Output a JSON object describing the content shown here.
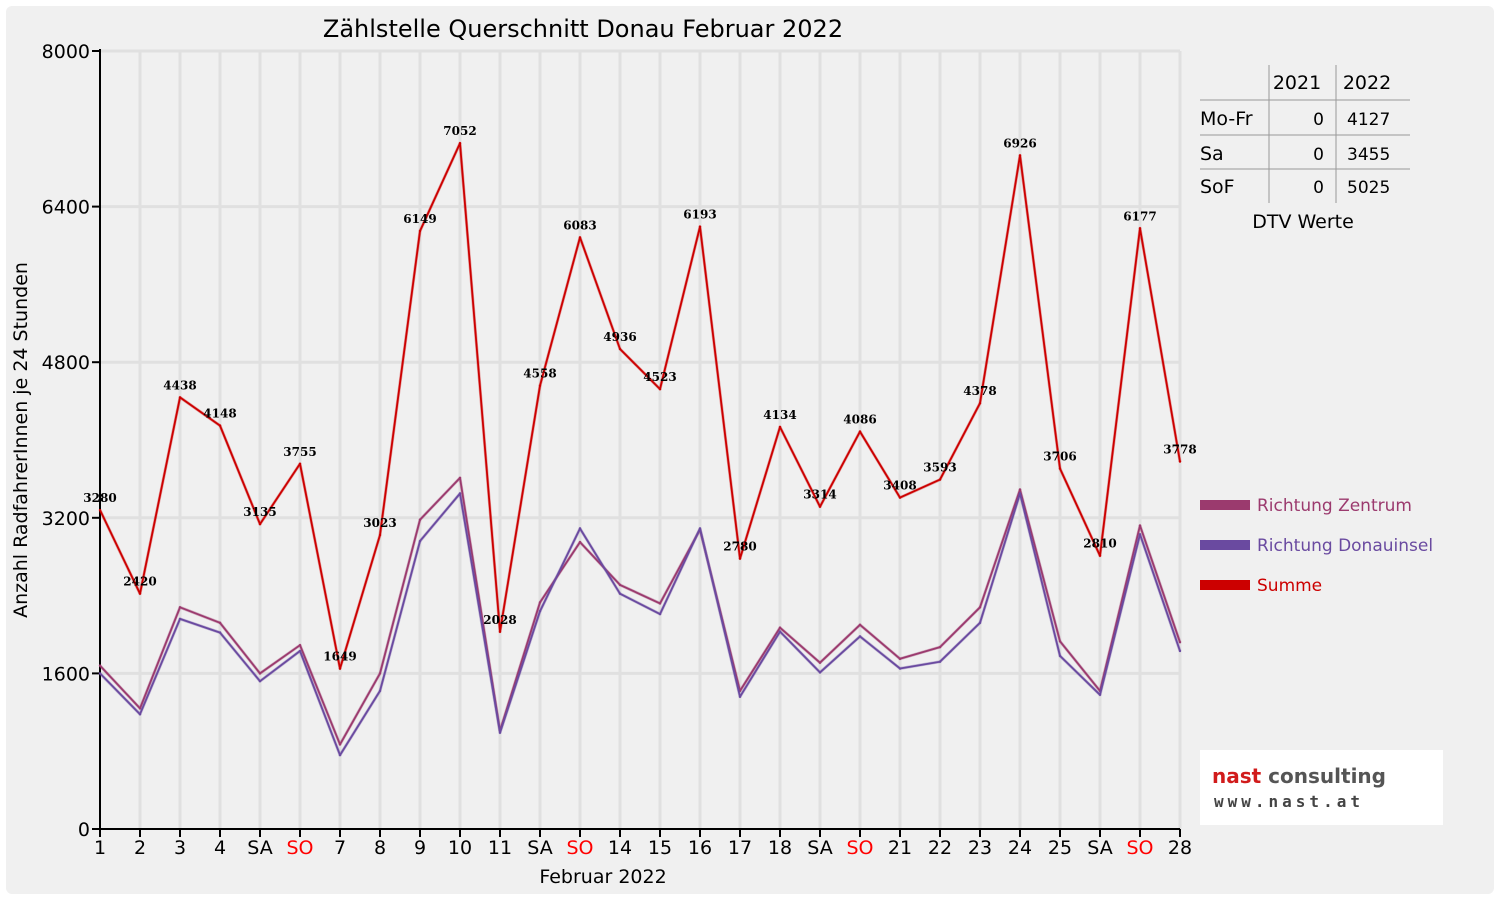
{
  "chart_data": {
    "type": "line",
    "title": "Zählstelle Querschnitt Donau Februar 2022",
    "xlabel": "Februar 2022",
    "ylabel": "Anzahl RadfahrerInnen je 24 Stunden",
    "ylim": [
      0,
      8000
    ],
    "yticks": [
      "0",
      "1600",
      "3200",
      "4800",
      "6400",
      "8000"
    ],
    "categories": [
      "1",
      "2",
      "3",
      "4",
      "SA",
      "SO",
      "7",
      "8",
      "9",
      "10",
      "11",
      "SA",
      "SO",
      "14",
      "15",
      "16",
      "17",
      "18",
      "SA",
      "SO",
      "21",
      "22",
      "23",
      "24",
      "25",
      "SA",
      "SO",
      "28"
    ],
    "highlight_categories": [
      "SO"
    ],
    "grid": true,
    "legend_position": "right",
    "series": [
      {
        "name": "Richtung Zentrum",
        "color": "#9b3a6e",
        "values": [
          1680,
          1240,
          2280,
          2120,
          1600,
          1890,
          870,
          1600,
          3180,
          3610,
          1010,
          2330,
          2950,
          2510,
          2320,
          3080,
          1420,
          2070,
          1710,
          2100,
          1750,
          1870,
          2280,
          3490,
          1930,
          1420,
          3120,
          1920
        ]
      },
      {
        "name": "Richtung Donauinsel",
        "color": "#6a4aa0",
        "values": [
          1600,
          1180,
          2160,
          2020,
          1520,
          1830,
          760,
          1420,
          2960,
          3450,
          990,
          2240,
          3090,
          2420,
          2210,
          3090,
          1360,
          2030,
          1610,
          1980,
          1650,
          1720,
          2120,
          3450,
          1780,
          1380,
          3030,
          1830
        ]
      },
      {
        "name": "Summe",
        "color": "#cc0000",
        "values": [
          3280,
          2420,
          4438,
          4148,
          3135,
          3755,
          1649,
          3023,
          6149,
          7052,
          2028,
          4558,
          6083,
          4936,
          4523,
          6193,
          2780,
          4134,
          3314,
          4086,
          3408,
          3593,
          4378,
          6926,
          3706,
          2810,
          6177,
          3778
        ]
      }
    ],
    "data_labels": [
      "3280",
      "2420",
      "4438",
      "4148",
      "3135",
      "3755",
      "1649",
      "3023",
      "6149",
      "7052",
      "2028",
      "4558",
      "6083",
      "4936",
      "4523",
      "6193",
      "2780",
      "4134",
      "3314",
      "4086",
      "3408",
      "3593",
      "4378",
      "6926",
      "3706",
      "2810",
      "6177",
      "3778"
    ]
  },
  "dtv_table": {
    "headers": [
      "",
      "2021",
      "2022"
    ],
    "rows": [
      {
        "label": "Mo-Fr",
        "v2021": "0",
        "v2022": "4127"
      },
      {
        "label": "Sa",
        "v2021": "0",
        "v2022": "3455"
      },
      {
        "label": "SoF",
        "v2021": "0",
        "v2022": "5025"
      }
    ],
    "caption": "DTV Werte"
  },
  "logo": {
    "title_part1": "nast",
    "title_part2": "consulting",
    "url": "www.nast.at"
  },
  "colors": {
    "background": "#f0f0f0",
    "grid": "#e0e0e0",
    "weekend_label": "#ff0000"
  }
}
